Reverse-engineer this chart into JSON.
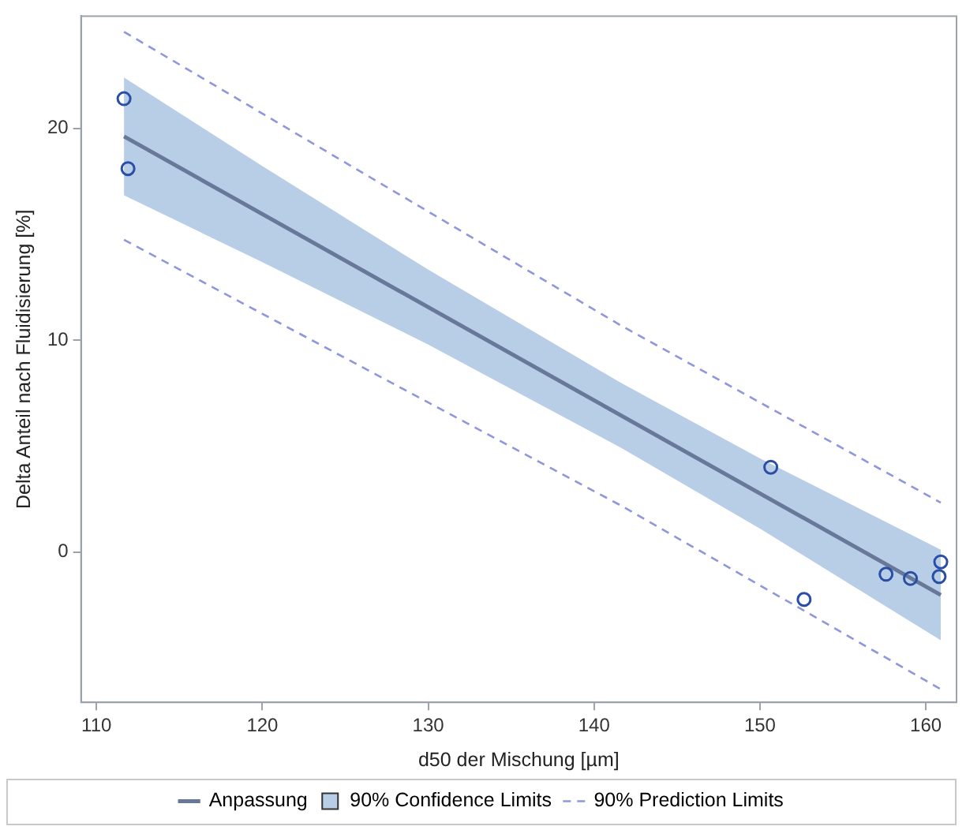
{
  "chart_data": {
    "type": "scatter",
    "xlabel": "d50 der Mischung [µm]",
    "ylabel": "Delta Anteil nach Fluidisierung [%]",
    "xlim": [
      109.07,
      161.85
    ],
    "xticks": [
      110,
      120,
      130,
      140,
      150,
      160
    ],
    "ylim": [
      -7.1,
      25.3
    ],
    "yticks": [
      0,
      10,
      20
    ],
    "grid": false,
    "legend": "bottom",
    "series": [
      {
        "type": "line",
        "name": "Anpassung",
        "color": "#687898",
        "line_style": "solid",
        "x": [
          111.66,
          160.9
        ],
        "values": [
          19.62,
          -2.03
        ]
      },
      {
        "type": "area",
        "name": "90% Confidence Limits",
        "color": "#b8cde6",
        "x": [
          111.66,
          120,
          130,
          141.6,
          150,
          160.9,
          160.9,
          150,
          141.6,
          130,
          120,
          111.66
        ],
        "values": [
          22.4,
          18.22,
          13.33,
          7.99,
          4.42,
          0.11,
          -4.17,
          1.1,
          4.93,
          9.79,
          13.68,
          16.84
        ]
      },
      {
        "type": "line",
        "name": "90% Prediction Limits",
        "color": "#8f96dc",
        "line_style": "dashed",
        "x": [
          111.66,
          141.6,
          160.9
        ],
        "values": [
          24.56,
          10.7,
          2.33
        ]
      },
      {
        "type": "line",
        "color": "#8f96dc",
        "line_style": "dashed",
        "x": [
          111.66,
          141.6,
          160.9
        ],
        "values": [
          14.74,
          2.2,
          -6.48
        ]
      },
      {
        "type": "scatter",
        "color": "#2a4ea6",
        "marker": "circle",
        "x": [
          111.66,
          111.9,
          150.65,
          152.66,
          157.6,
          159.07,
          160.8,
          160.9
        ],
        "values": [
          21.4,
          18.1,
          4.0,
          -2.24,
          -1.05,
          -1.25,
          -1.16,
          -0.47
        ]
      }
    ]
  }
}
